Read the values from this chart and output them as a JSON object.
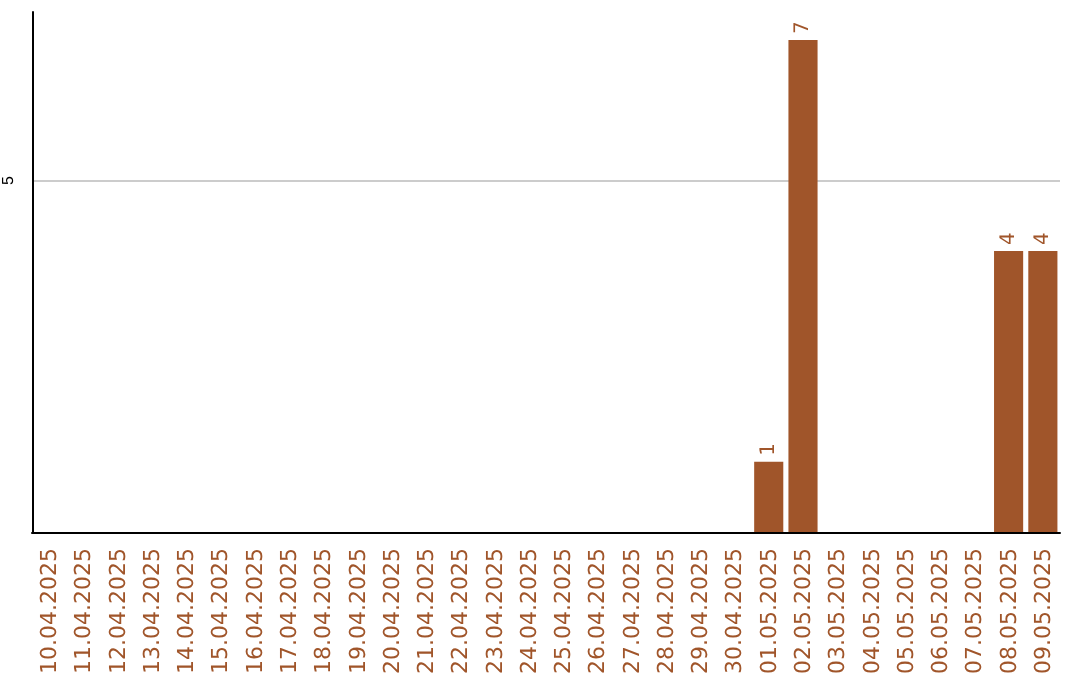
{
  "chart_data": {
    "type": "bar",
    "categories": [
      "10.04.2025",
      "11.04.2025",
      "12.04.2025",
      "13.04.2025",
      "14.04.2025",
      "15.04.2025",
      "16.04.2025",
      "17.04.2025",
      "18.04.2025",
      "19.04.2025",
      "20.04.2025",
      "21.04.2025",
      "22.04.2025",
      "23.04.2025",
      "24.04.2025",
      "25.04.2025",
      "26.04.2025",
      "27.04.2025",
      "28.04.2025",
      "29.04.2025",
      "30.04.2025",
      "01.05.2025",
      "02.05.2025",
      "03.05.2025",
      "04.05.2025",
      "05.05.2025",
      "06.05.2025",
      "07.05.2025",
      "08.05.2025",
      "09.05.2025"
    ],
    "values": [
      null,
      null,
      null,
      null,
      null,
      null,
      null,
      null,
      null,
      null,
      null,
      null,
      null,
      null,
      null,
      null,
      null,
      null,
      null,
      null,
      null,
      1,
      7,
      null,
      null,
      null,
      null,
      null,
      4,
      4
    ],
    "color": "#a0552a",
    "ylim": [
      0,
      7.4
    ],
    "yticks": [
      5
    ],
    "grid": "y",
    "data_labels": true
  }
}
